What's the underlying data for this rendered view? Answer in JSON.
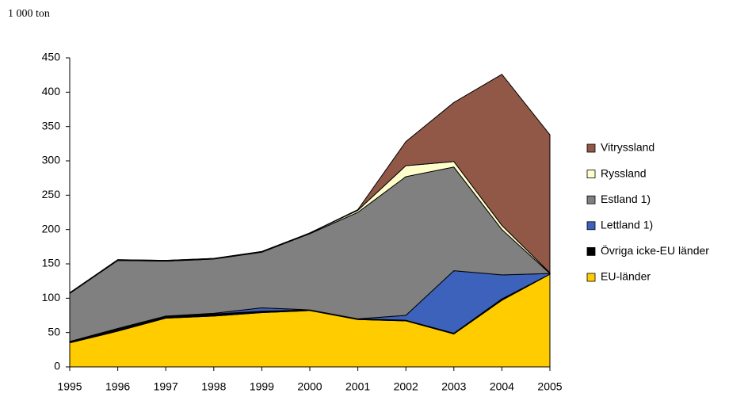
{
  "chart_data": {
    "type": "stacked_area",
    "unit_label": "1 000 ton",
    "categories": [
      "1995",
      "1996",
      "1997",
      "1998",
      "1999",
      "2000",
      "2001",
      "2002",
      "2003",
      "2004",
      "2005"
    ],
    "series": [
      {
        "name": "EU-länder",
        "color": "#ffcc00",
        "values": [
          35,
          52,
          71,
          74,
          79,
          82,
          69,
          67,
          48,
          97,
          135
        ]
      },
      {
        "name": "Övriga icke-EU länder",
        "color": "#000000",
        "values": [
          2,
          4,
          3,
          3,
          2,
          1,
          1,
          1,
          1,
          2,
          0
        ]
      },
      {
        "name": "Lettland 1)",
        "color": "#3d62bb",
        "values": [
          0,
          0,
          0,
          1,
          5,
          0,
          0,
          7,
          91,
          35,
          1
        ]
      },
      {
        "name": "Estland 1)",
        "color": "#808080",
        "values": [
          70,
          99,
          80,
          79,
          81,
          111,
          155,
          202,
          151,
          66,
          0
        ]
      },
      {
        "name": "Ryssland",
        "color": "#ffffcc",
        "values": [
          1,
          1,
          1,
          1,
          1,
          1,
          3,
          16,
          8,
          6,
          1
        ]
      },
      {
        "name": "Vitryssland",
        "color": "#915848",
        "values": [
          0,
          0,
          0,
          0,
          0,
          0,
          1,
          35,
          86,
          220,
          201
        ]
      }
    ],
    "ylim": [
      0,
      450
    ],
    "yticks": [
      0,
      50,
      100,
      150,
      200,
      250,
      300,
      350,
      400,
      450
    ]
  }
}
